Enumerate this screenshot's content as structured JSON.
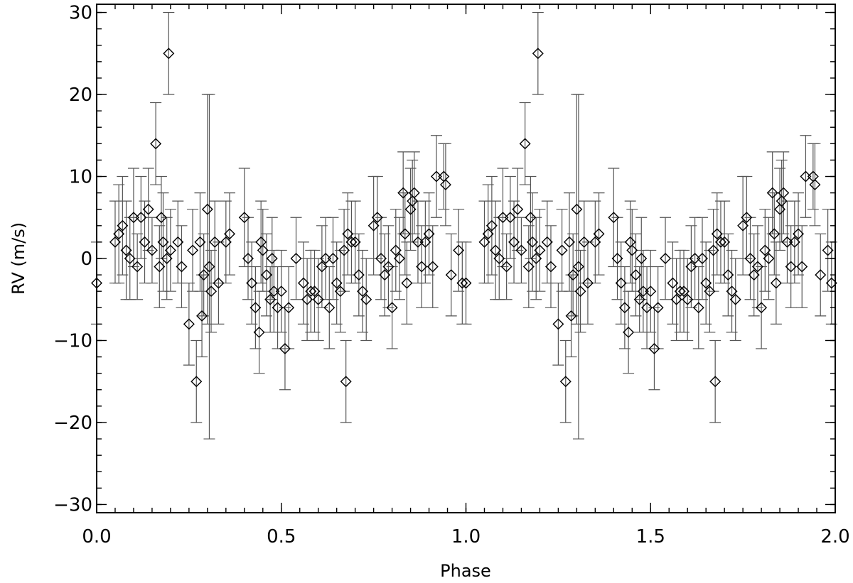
{
  "chart_data": {
    "type": "scatter",
    "title": "",
    "xlabel": "Phase",
    "ylabel": "RV (m/s)",
    "xlim": [
      0.0,
      2.0
    ],
    "ylim": [
      -31,
      31
    ],
    "x_ticks": [
      0.0,
      0.5,
      1.0,
      1.5,
      2.0
    ],
    "x_tick_labels": [
      "0.0",
      "0.5",
      "1.0",
      "1.5",
      "2.0"
    ],
    "y_ticks": [
      -30,
      -20,
      -10,
      0,
      10,
      20,
      30
    ],
    "y_tick_labels": [
      "−30",
      "−20",
      "−10",
      "0",
      "10",
      "20",
      "30"
    ],
    "grid": false,
    "marker": "diamond",
    "error_bars": true,
    "note_on_data": "Observations plotted twice; the points for phase 1.0–2.0 repeat those for phase 0.0–1.0.",
    "series": [
      {
        "points": [
          {
            "x": 0.0,
            "y": -3,
            "err": 5
          },
          {
            "x": 0.05,
            "y": 2,
            "err": 5
          },
          {
            "x": 0.06,
            "y": 3,
            "err": 6
          },
          {
            "x": 0.07,
            "y": 4,
            "err": 6
          },
          {
            "x": 0.08,
            "y": 1,
            "err": 6
          },
          {
            "x": 0.09,
            "y": 0,
            "err": 5
          },
          {
            "x": 0.1,
            "y": 5,
            "err": 6
          },
          {
            "x": 0.11,
            "y": -1,
            "err": 4
          },
          {
            "x": 0.12,
            "y": 5,
            "err": 5
          },
          {
            "x": 0.13,
            "y": 2,
            "err": 5
          },
          {
            "x": 0.14,
            "y": 6,
            "err": 5
          },
          {
            "x": 0.15,
            "y": 1,
            "err": 4
          },
          {
            "x": 0.16,
            "y": 14,
            "err": 5
          },
          {
            "x": 0.17,
            "y": -1,
            "err": 5
          },
          {
            "x": 0.175,
            "y": 5,
            "err": 5
          },
          {
            "x": 0.18,
            "y": 2,
            "err": 6
          },
          {
            "x": 0.19,
            "y": 0,
            "err": 5
          },
          {
            "x": 0.195,
            "y": 25,
            "err": 5
          },
          {
            "x": 0.2,
            "y": 1,
            "err": 5
          },
          {
            "x": 0.22,
            "y": 2,
            "err": 5
          },
          {
            "x": 0.23,
            "y": -1,
            "err": 5
          },
          {
            "x": 0.25,
            "y": -8,
            "err": 5
          },
          {
            "x": 0.26,
            "y": 1,
            "err": 5
          },
          {
            "x": 0.27,
            "y": -15,
            "err": 5
          },
          {
            "x": 0.28,
            "y": 2,
            "err": 6
          },
          {
            "x": 0.285,
            "y": -7,
            "err": 5
          },
          {
            "x": 0.29,
            "y": -2,
            "err": 5
          },
          {
            "x": 0.3,
            "y": 6,
            "err": 14
          },
          {
            "x": 0.305,
            "y": -1,
            "err": 21
          },
          {
            "x": 0.31,
            "y": -4,
            "err": 5
          },
          {
            "x": 0.32,
            "y": 2,
            "err": 5
          },
          {
            "x": 0.33,
            "y": -3,
            "err": 5
          },
          {
            "x": 0.35,
            "y": 2,
            "err": 5
          },
          {
            "x": 0.36,
            "y": 3,
            "err": 5
          },
          {
            "x": 0.4,
            "y": 5,
            "err": 6
          },
          {
            "x": 0.41,
            "y": 0,
            "err": 5
          },
          {
            "x": 0.42,
            "y": -3,
            "err": 5
          },
          {
            "x": 0.43,
            "y": -6,
            "err": 5
          },
          {
            "x": 0.44,
            "y": -9,
            "err": 5
          },
          {
            "x": 0.445,
            "y": 2,
            "err": 5
          },
          {
            "x": 0.45,
            "y": 1,
            "err": 5
          },
          {
            "x": 0.46,
            "y": -2,
            "err": 5
          },
          {
            "x": 0.47,
            "y": -5,
            "err": 4
          },
          {
            "x": 0.475,
            "y": 0,
            "err": 5
          },
          {
            "x": 0.48,
            "y": -4,
            "err": 5
          },
          {
            "x": 0.49,
            "y": -6,
            "err": 5
          },
          {
            "x": 0.5,
            "y": -4,
            "err": 5
          },
          {
            "x": 0.51,
            "y": -11,
            "err": 5
          },
          {
            "x": 0.52,
            "y": -6,
            "err": 5
          },
          {
            "x": 0.54,
            "y": 0,
            "err": 5
          },
          {
            "x": 0.56,
            "y": -3,
            "err": 5
          },
          {
            "x": 0.57,
            "y": -5,
            "err": 5
          },
          {
            "x": 0.58,
            "y": -4,
            "err": 5
          },
          {
            "x": 0.59,
            "y": -4,
            "err": 5
          },
          {
            "x": 0.6,
            "y": -5,
            "err": 5
          },
          {
            "x": 0.61,
            "y": -1,
            "err": 5
          },
          {
            "x": 0.62,
            "y": 0,
            "err": 5
          },
          {
            "x": 0.63,
            "y": -6,
            "err": 5
          },
          {
            "x": 0.64,
            "y": 0,
            "err": 5
          },
          {
            "x": 0.65,
            "y": -3,
            "err": 5
          },
          {
            "x": 0.66,
            "y": -4,
            "err": 5
          },
          {
            "x": 0.67,
            "y": 1,
            "err": 5
          },
          {
            "x": 0.675,
            "y": -15,
            "err": 5
          },
          {
            "x": 0.68,
            "y": 3,
            "err": 5
          },
          {
            "x": 0.69,
            "y": 2,
            "err": 5
          },
          {
            "x": 0.7,
            "y": 2,
            "err": 5
          },
          {
            "x": 0.71,
            "y": -2,
            "err": 5
          },
          {
            "x": 0.72,
            "y": -4,
            "err": 5
          },
          {
            "x": 0.73,
            "y": -5,
            "err": 5
          },
          {
            "x": 0.75,
            "y": 4,
            "err": 6
          },
          {
            "x": 0.76,
            "y": 5,
            "err": 5
          },
          {
            "x": 0.77,
            "y": 0,
            "err": 5
          },
          {
            "x": 0.78,
            "y": -2,
            "err": 5
          },
          {
            "x": 0.79,
            "y": -1,
            "err": 5
          },
          {
            "x": 0.8,
            "y": -6,
            "err": 5
          },
          {
            "x": 0.81,
            "y": 1,
            "err": 5
          },
          {
            "x": 0.82,
            "y": 0,
            "err": 5
          },
          {
            "x": 0.83,
            "y": 8,
            "err": 5
          },
          {
            "x": 0.835,
            "y": 3,
            "err": 5
          },
          {
            "x": 0.84,
            "y": -3,
            "err": 5
          },
          {
            "x": 0.85,
            "y": 6,
            "err": 5
          },
          {
            "x": 0.855,
            "y": 7,
            "err": 5
          },
          {
            "x": 0.86,
            "y": 8,
            "err": 5
          },
          {
            "x": 0.87,
            "y": 2,
            "err": 5
          },
          {
            "x": 0.88,
            "y": -1,
            "err": 5
          },
          {
            "x": 0.89,
            "y": 2,
            "err": 5
          },
          {
            "x": 0.9,
            "y": 3,
            "err": 5
          },
          {
            "x": 0.91,
            "y": -1,
            "err": 5
          },
          {
            "x": 0.92,
            "y": 10,
            "err": 5
          },
          {
            "x": 0.94,
            "y": 10,
            "err": 4
          },
          {
            "x": 0.945,
            "y": 9,
            "err": 5
          },
          {
            "x": 0.96,
            "y": -2,
            "err": 5
          },
          {
            "x": 0.98,
            "y": 1,
            "err": 5
          },
          {
            "x": 0.99,
            "y": -3,
            "err": 5
          }
        ]
      }
    ]
  }
}
